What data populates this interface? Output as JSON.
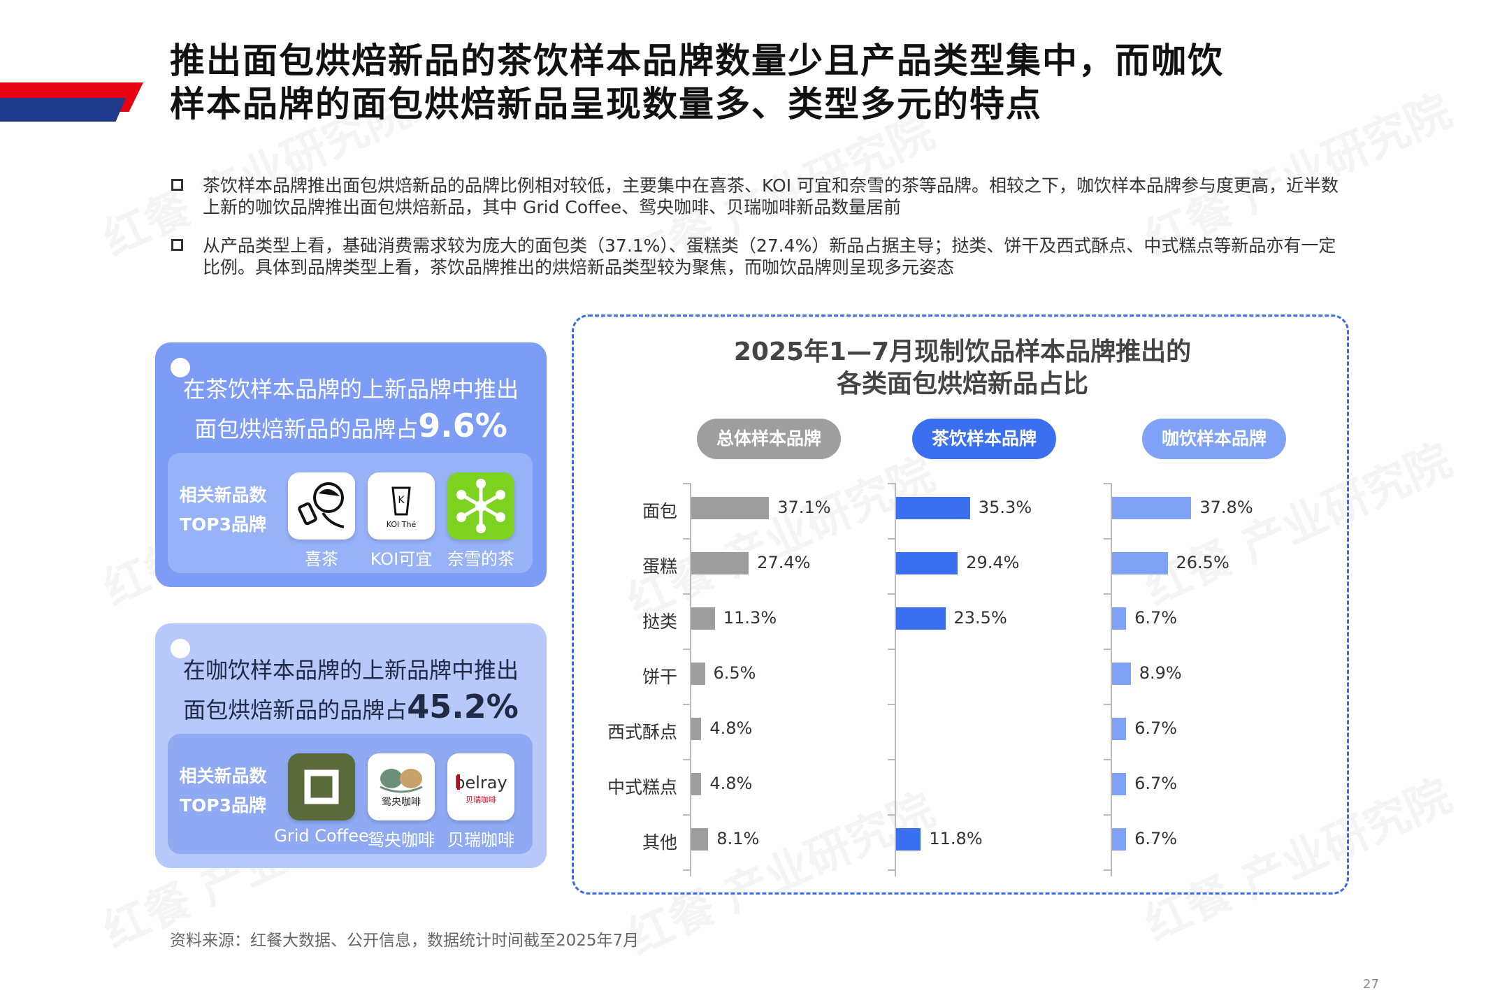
{
  "title_line1": "推出面包烘焙新品的茶饮样本品牌数量少且产品类型集中，而咖饮",
  "title_line2": "样本品牌的面包烘焙新品呈现数量多、类型多元的特点",
  "bullets": [
    "茶饮样本品牌推出面包烘焙新品的品牌比例相对较低，主要集中在喜茶、KOI 可宜和奈雪的茶等品牌。相较之下，咖饮样本品牌参与度更高，近半数上新的咖饮品牌推出面包烘焙新品，其中 Grid Coffee、鸳央咖啡、贝瑞咖啡新品数量居前",
    "从产品类型上看，基础消费需求较为庞大的面包类（37.1%）、蛋糕类（27.4%）新品占据主导；挞类、饼干及西式酥点、中式糕点等新品亦有一定比例。具体到品牌类型上看，茶饮品牌推出的烘焙新品类型较为聚焦，而咖饮品牌则呈现多元姿态"
  ],
  "card_tea": {
    "line1": "在茶饮样本品牌的上新品牌中推出",
    "line2_prefix": "面包烘焙新品的品牌占",
    "line2_value": "9.6%",
    "top_label_1": "相关新品数",
    "top_label_2": "TOP3品牌",
    "brands": [
      "喜茶",
      "KOI可宜",
      "奈雪的茶"
    ],
    "koi_logo_text": "KOI Thé"
  },
  "card_coffee": {
    "line1": "在咖饮样本品牌的上新品牌中推出",
    "line2_prefix": "面包烘焙新品的品牌占",
    "line2_value": "45.2%",
    "top_label_1": "相关新品数",
    "top_label_2": "TOP3品牌",
    "brands": [
      "Grid Coffee",
      "鸳央咖啡",
      "贝瑞咖啡"
    ],
    "yuanyang_logo_text": "鸳央咖啡",
    "belray_logo_text": "belray",
    "belray_logo_sub": "贝瑞咖啡"
  },
  "chart_data": {
    "type": "bar",
    "orientation": "horizontal",
    "title_line1": "2025年1—7月现制饮品样本品牌推出的",
    "title_line2": "各类面包烘焙新品占比",
    "categories": [
      "面包",
      "蛋糕",
      "挞类",
      "饼干",
      "西式酥点",
      "中式糕点",
      "其他"
    ],
    "series": [
      {
        "name": "总体样本品牌",
        "color": "#9e9e9e",
        "values": [
          37.1,
          27.4,
          11.3,
          6.5,
          4.8,
          4.8,
          8.1
        ]
      },
      {
        "name": "茶饮样本品牌",
        "color": "#3a6ff0",
        "values": [
          35.3,
          29.4,
          23.5,
          null,
          null,
          null,
          11.8
        ]
      },
      {
        "name": "咖饮样本品牌",
        "color": "#7fa2f7",
        "values": [
          37.8,
          26.5,
          6.7,
          8.9,
          6.7,
          6.7,
          6.7
        ]
      }
    ],
    "unit": "%"
  },
  "source": "资料来源：红餐大数据、公开信息，数据统计时间截至2025年7月",
  "page_number": "27",
  "watermark": "红餐 产业研究院"
}
